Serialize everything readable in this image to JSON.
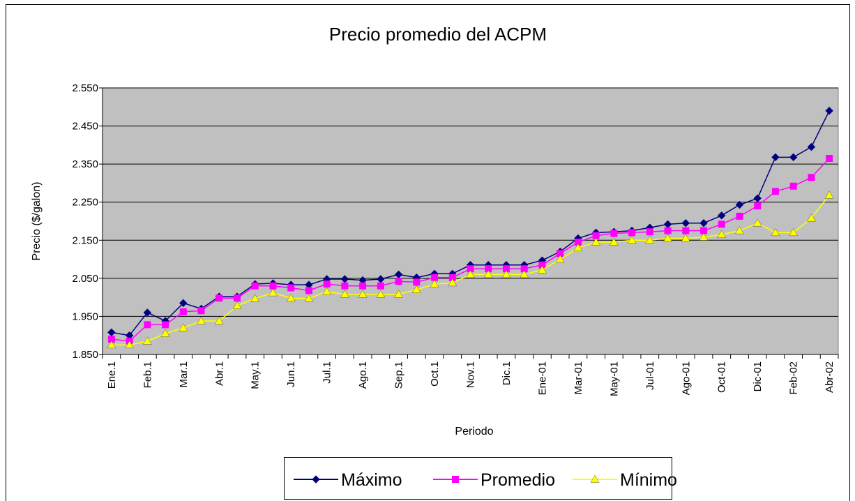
{
  "chart_data": {
    "type": "line",
    "title": "Precio promedio del ACPM",
    "x_label": "Periodo",
    "y_label": "Precio ($/galon)",
    "categories": [
      "Ene.1",
      null,
      "Feb.1",
      null,
      "Mar.1",
      null,
      "Abr.1",
      null,
      "May.1",
      null,
      "Jun.1",
      null,
      "Jul.1",
      null,
      "Ago.1",
      null,
      "Sep.1",
      null,
      "Oct.1",
      null,
      "Nov.1",
      null,
      "Dic.1",
      null,
      "Ene-01",
      null,
      "Mar-01",
      null,
      "May-01",
      null,
      "Jul-01",
      null,
      "Ago-01",
      null,
      "Oct-01",
      null,
      "Dic-01",
      null,
      "Feb-02",
      null,
      "Abr-02"
    ],
    "series": [
      {
        "name": "Máximo",
        "color": "#000080",
        "marker": "diamond",
        "values": [
          1908,
          1900,
          1960,
          1938,
          1985,
          1970,
          2002,
          2002,
          2035,
          2037,
          2033,
          2033,
          2048,
          2048,
          2045,
          2048,
          2060,
          2052,
          2062,
          2062,
          2085,
          2085,
          2085,
          2085,
          2097,
          2120,
          2155,
          2170,
          2172,
          2175,
          2183,
          2192,
          2195,
          2195,
          2215,
          2243,
          2260,
          2368,
          2368,
          2395,
          2490
        ]
      },
      {
        "name": "Promedio",
        "color": "#ff00ff",
        "marker": "square",
        "values": [
          1890,
          1885,
          1928,
          1928,
          1962,
          1965,
          1998,
          1998,
          2030,
          2030,
          2025,
          2018,
          2035,
          2030,
          2030,
          2030,
          2042,
          2040,
          2052,
          2052,
          2075,
          2075,
          2075,
          2075,
          2085,
          2115,
          2145,
          2162,
          2168,
          2170,
          2172,
          2175,
          2175,
          2175,
          2192,
          2213,
          2240,
          2278,
          2292,
          2315,
          2365
        ]
      },
      {
        "name": "Mínimo",
        "color": "#ffff00",
        "marker": "triangle",
        "values": [
          1875,
          1875,
          1885,
          1905,
          1920,
          1938,
          1938,
          1978,
          1997,
          2012,
          1998,
          1997,
          2015,
          2008,
          2008,
          2008,
          2008,
          2020,
          2035,
          2038,
          2060,
          2060,
          2060,
          2060,
          2072,
          2100,
          2130,
          2145,
          2145,
          2150,
          2150,
          2155,
          2155,
          2158,
          2165,
          2175,
          2195,
          2170,
          2170,
          2208,
          2268
        ]
      }
    ],
    "ylim": [
      1850,
      2550
    ],
    "yticks": [
      {
        "value": 1850,
        "label": "1.850"
      },
      {
        "value": 1950,
        "label": "1.950"
      },
      {
        "value": 2050,
        "label": "2.050"
      },
      {
        "value": 2150,
        "label": "2.150"
      },
      {
        "value": 2250,
        "label": "2.250"
      },
      {
        "value": 2350,
        "label": "2.350"
      },
      {
        "value": 2450,
        "label": "2.450"
      },
      {
        "value": 2550,
        "label": "2.550"
      }
    ],
    "grid": true,
    "legend": "bottom",
    "plot_background": "#c0c0c0"
  }
}
